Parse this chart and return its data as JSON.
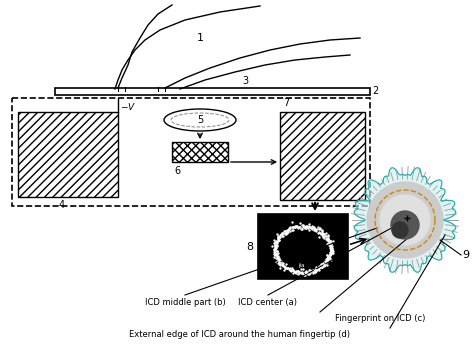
{
  "bg_color": "#ffffff",
  "label_1": "1",
  "label_2": "2",
  "label_3": "3",
  "label_4": "4",
  "label_5": "5",
  "label_6": "6",
  "label_7": "7",
  "label_8": "8",
  "label_9": "9",
  "text_a": "ICD center (a)",
  "text_b": "ICD middle part (b)",
  "text_c": "Fingerprint on ICD (c)",
  "text_d": "External edge of ICD around the human fingertip (d)",
  "figw": 4.74,
  "figh": 3.6,
  "dpi": 100
}
